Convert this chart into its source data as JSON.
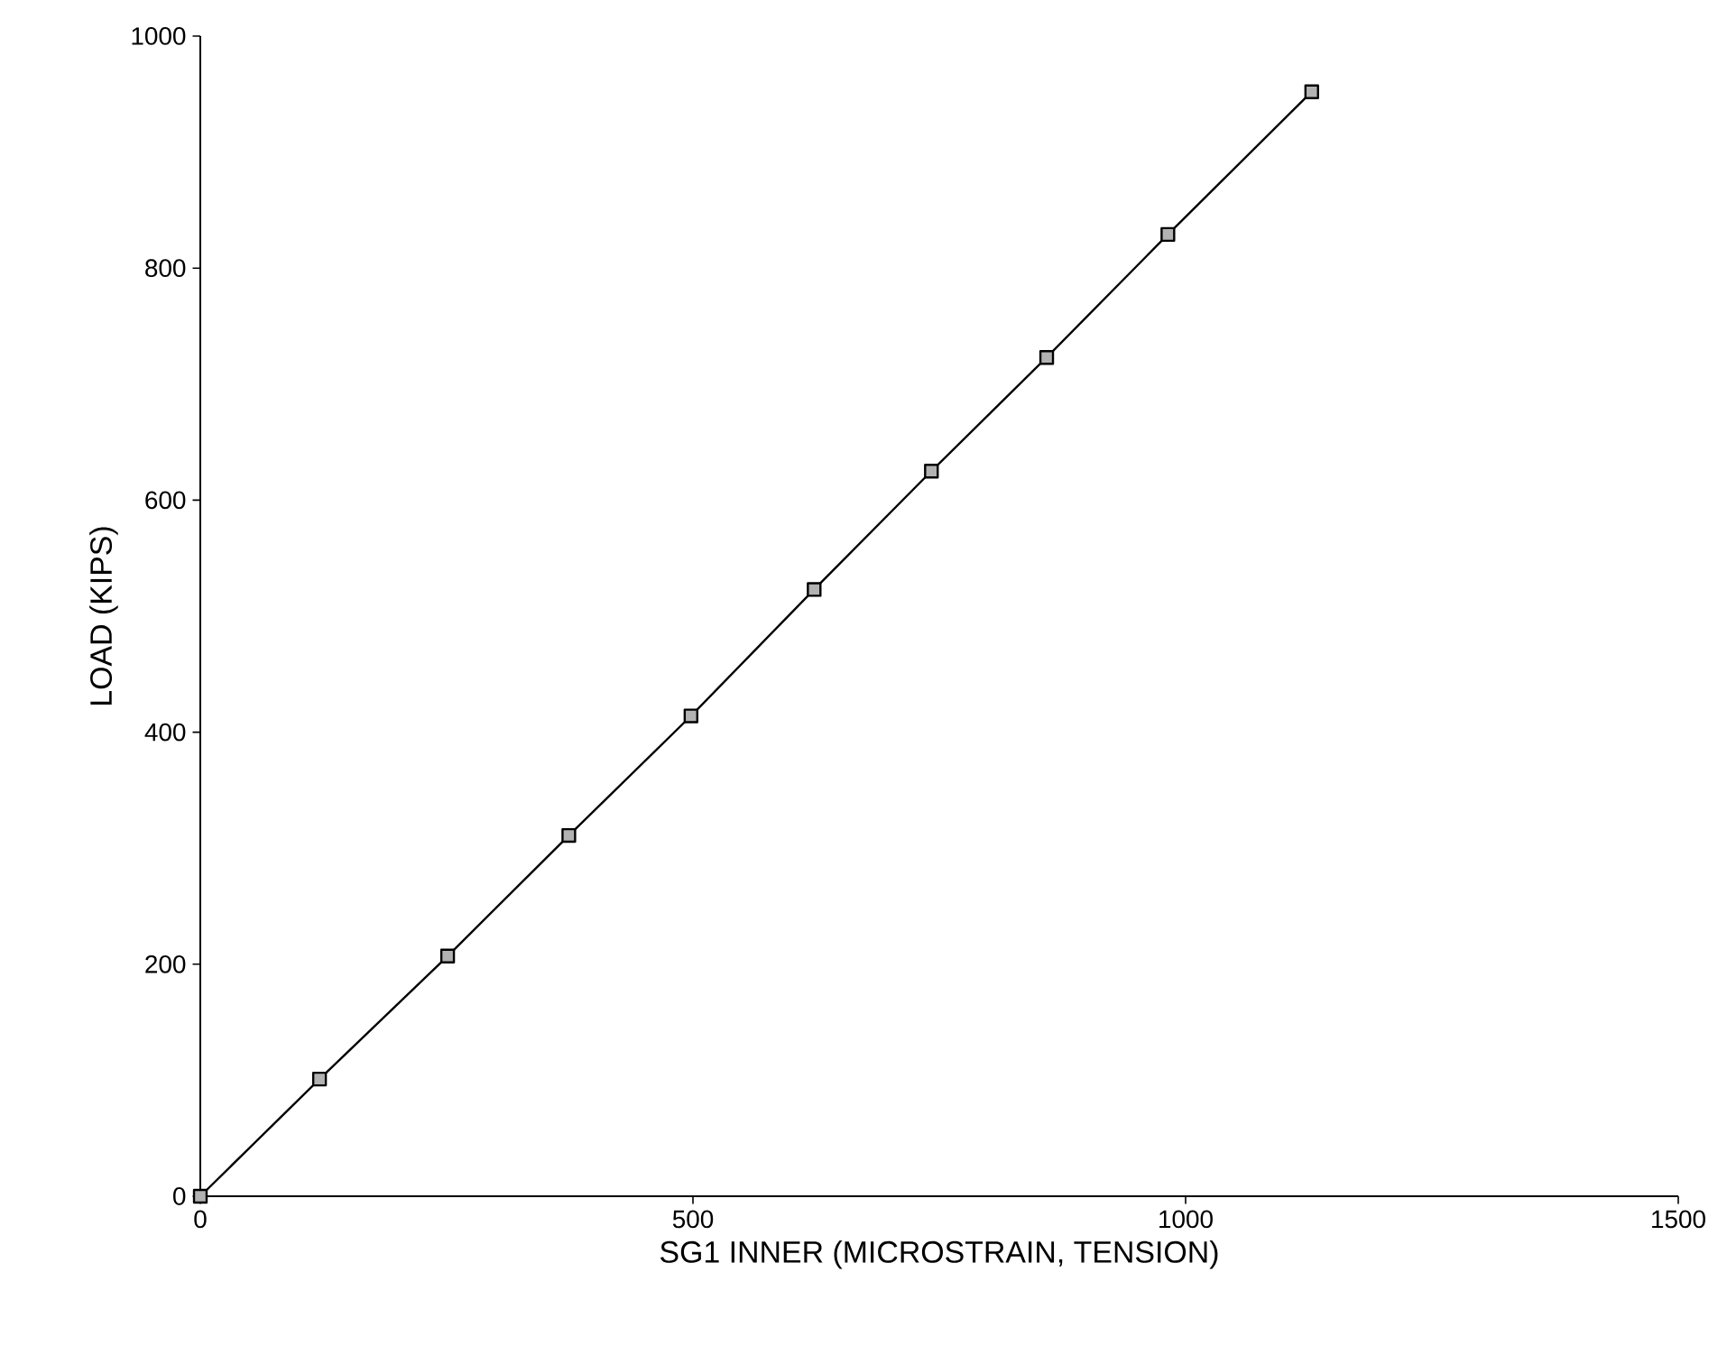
{
  "chart_data": {
    "type": "line",
    "xlabel": "SG1 INNER (MICROSTRAIN, TENSION)",
    "ylabel": "LOAD (KIPS)",
    "xlim": [
      0,
      1500
    ],
    "ylim": [
      0,
      1000
    ],
    "xticks": [
      0,
      500,
      1000,
      1500
    ],
    "yticks": [
      0,
      200,
      400,
      600,
      800,
      1000
    ],
    "series": [
      {
        "color": "#000000",
        "x": [
          0,
          121,
          251,
          374,
          498,
          623,
          742,
          859,
          982,
          1128
        ],
        "values": [
          0,
          101,
          207,
          311,
          414,
          523,
          625,
          723,
          829,
          952
        ]
      }
    ],
    "marker": "square",
    "line_style": "solid",
    "grid": false
  }
}
